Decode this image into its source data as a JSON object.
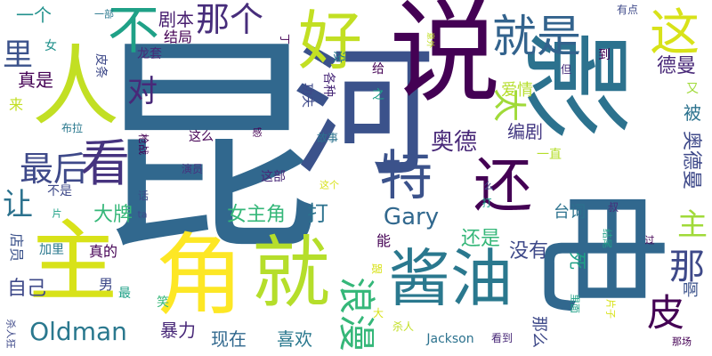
{
  "wordcloud": {
    "palette": "viridis",
    "words": [
      {
        "text": "昆",
        "color": "#31688e"
      },
      {
        "text": "河",
        "color": "#3b528b"
      },
      {
        "text": "影",
        "color": "#2c728e"
      },
      {
        "text": "说",
        "color": "#440154"
      },
      {
        "text": "电",
        "color": "#31688e"
      },
      {
        "text": "角",
        "color": "#fde725"
      },
      {
        "text": "主",
        "color": "#d8e219"
      },
      {
        "text": "就",
        "color": "#b5de2b"
      },
      {
        "text": "人",
        "color": "#c2df23"
      },
      {
        "text": "好",
        "color": "#c2df23"
      },
      {
        "text": "酱油",
        "color": "#2a788e"
      },
      {
        "text": "还",
        "color": "#440154"
      },
      {
        "text": "就是",
        "color": "#33638d"
      },
      {
        "text": "这",
        "color": "#d8e219"
      },
      {
        "text": "不",
        "color": "#1fa187"
      },
      {
        "text": "那个",
        "color": "#472d7b"
      },
      {
        "text": "看",
        "color": "#46337f"
      },
      {
        "text": "特",
        "color": "#3b528b"
      },
      {
        "text": "最后",
        "color": "#3e4989"
      },
      {
        "text": "对",
        "color": "#482878"
      },
      {
        "text": "太",
        "color": "#a0da39"
      },
      {
        "text": "浪漫",
        "color": "#35b779"
      },
      {
        "text": "皮",
        "color": "#440154"
      },
      {
        "text": "那",
        "color": "#3e4989"
      },
      {
        "text": "主",
        "color": "#a0da39"
      },
      {
        "text": "里",
        "color": "#3b528b"
      },
      {
        "text": "让",
        "color": "#2c728e"
      },
      {
        "text": "Gary",
        "color": "#31688e"
      },
      {
        "text": "Oldman",
        "color": "#2a788e"
      },
      {
        "text": "奥德",
        "color": "#482878"
      },
      {
        "text": "奥德曼",
        "color": "#3e4989"
      },
      {
        "text": "德曼",
        "color": "#482878"
      },
      {
        "text": "剧本",
        "color": "#481f70"
      },
      {
        "text": "打",
        "color": "#2c728e"
      },
      {
        "text": "没有",
        "color": "#3e4989"
      },
      {
        "text": "还是",
        "color": "#35b779"
      },
      {
        "text": "女主角",
        "color": "#35b779"
      },
      {
        "text": "大牌",
        "color": "#35b779"
      },
      {
        "text": "自己",
        "color": "#3e4989"
      },
      {
        "text": "暴力",
        "color": "#482878"
      },
      {
        "text": "现在",
        "color": "#31688e"
      },
      {
        "text": "喜欢",
        "color": "#2a788e"
      },
      {
        "text": "真是",
        "color": "#440154"
      },
      {
        "text": "一个",
        "color": "#21918c"
      },
      {
        "text": "编剧",
        "color": "#443983"
      },
      {
        "text": "台词",
        "color": "#2c728e"
      },
      {
        "text": "被",
        "color": "#2c728e"
      },
      {
        "text": "爱情",
        "color": "#b5de2b"
      },
      {
        "text": "啊",
        "color": "#3b528b"
      },
      {
        "text": "死",
        "color": "#1fa187"
      },
      {
        "text": "那么",
        "color": "#3e4989"
      },
      {
        "text": "结局",
        "color": "#440154"
      },
      {
        "text": "皮条",
        "color": "#3e4989"
      },
      {
        "text": "龙套",
        "color": "#482878"
      },
      {
        "text": "功夫",
        "color": "#3e4989"
      },
      {
        "text": "各种",
        "color": "#482878"
      },
      {
        "text": "给",
        "color": "#440154"
      },
      {
        "text": "没",
        "color": "#2a788e"
      },
      {
        "text": "到",
        "color": "#440154"
      },
      {
        "text": "丁",
        "color": "#440154"
      },
      {
        "text": "有点",
        "color": "#3e4989"
      },
      {
        "text": "但",
        "color": "#472d7b"
      },
      {
        "text": "又",
        "color": "#a0da39"
      },
      {
        "text": "来",
        "color": "#c2df23"
      },
      {
        "text": "女",
        "color": "#21918c"
      },
      {
        "text": "一部",
        "color": "#2a788e"
      },
      {
        "text": "布拉",
        "color": "#2a788e"
      },
      {
        "text": "枪战",
        "color": "#440154"
      },
      {
        "text": "不是",
        "color": "#3e4989"
      },
      {
        "text": "这么",
        "color": "#440154"
      },
      {
        "text": "感",
        "color": "#440154"
      },
      {
        "text": "演员",
        "color": "#46337f"
      },
      {
        "text": "这部",
        "color": "#482878"
      },
      {
        "text": "故事",
        "color": "#2c728e"
      },
      {
        "text": "之",
        "color": "#1fa187"
      },
      {
        "text": "一直",
        "color": "#b5de2b"
      },
      {
        "text": "这个",
        "color": "#d8e219"
      },
      {
        "text": "片",
        "color": "#1fa187"
      },
      {
        "text": "话",
        "color": "#3e4989"
      },
      {
        "text": "ta",
        "color": "#3e4989"
      },
      {
        "text": "么",
        "color": "#3e4989"
      },
      {
        "text": "叔",
        "color": "#472d7b"
      },
      {
        "text": "过",
        "color": "#440154"
      },
      {
        "text": "结尾",
        "color": "#1fa187"
      },
      {
        "text": "店员",
        "color": "#3b528b"
      },
      {
        "text": "加里",
        "color": "#2a788e"
      },
      {
        "text": "真的",
        "color": "#440154"
      },
      {
        "text": "能",
        "color": "#440154"
      },
      {
        "text": "跟",
        "color": "#d8e219"
      },
      {
        "text": "男",
        "color": "#3e4989"
      },
      {
        "text": "最",
        "color": "#1fa187"
      },
      {
        "text": "笑",
        "color": "#35b779"
      },
      {
        "text": "大",
        "color": "#d8e219"
      },
      {
        "text": "杀人",
        "color": "#c2df23"
      },
      {
        "text": "杀人狂",
        "color": "#3e4989"
      },
      {
        "text": "Jackson",
        "color": "#2c728e"
      },
      {
        "text": "看到",
        "color": "#482878"
      },
      {
        "text": "里面",
        "color": "#1fa187"
      },
      {
        "text": "片子",
        "color": "#d8e219"
      },
      {
        "text": "那场",
        "color": "#440154"
      },
      {
        "text": "打",
        "color": "#1fa187"
      },
      {
        "text": "意外",
        "color": "#c2df23"
      }
    ]
  }
}
